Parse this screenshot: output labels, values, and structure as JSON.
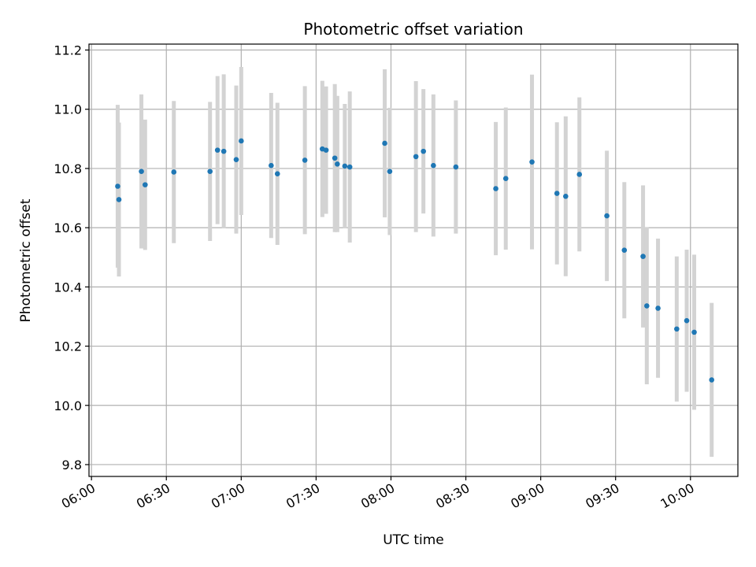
{
  "chart_data": {
    "type": "scatter",
    "title": "Photometric offset variation",
    "xlabel": "UTC time",
    "ylabel": "Photometric offset",
    "xlim": [
      "05:59",
      "10:19"
    ],
    "ylim": [
      9.76,
      11.22
    ],
    "x_ticks": [
      "06:00",
      "06:30",
      "07:00",
      "07:30",
      "08:00",
      "08:30",
      "09:00",
      "09:30",
      "10:00"
    ],
    "y_ticks": [
      "9.8",
      "10.0",
      "10.2",
      "10.4",
      "10.6",
      "10.8",
      "11.0",
      "11.2"
    ],
    "grid": true,
    "marker_color": "#1f77b4",
    "errorbar_color": "#d3d3d3",
    "points": [
      {
        "x": "06:10:30",
        "y": 10.74,
        "yerr": 0.275
      },
      {
        "x": "06:11:00",
        "y": 10.695,
        "yerr": 0.26
      },
      {
        "x": "06:20:00",
        "y": 10.79,
        "yerr": 0.26
      },
      {
        "x": "06:21:30",
        "y": 10.745,
        "yerr": 0.22
      },
      {
        "x": "06:33:00",
        "y": 10.788,
        "yerr": 0.24
      },
      {
        "x": "06:47:30",
        "y": 10.79,
        "yerr": 0.235
      },
      {
        "x": "06:50:30",
        "y": 10.862,
        "yerr": 0.25
      },
      {
        "x": "06:53:00",
        "y": 10.858,
        "yerr": 0.26
      },
      {
        "x": "06:58:00",
        "y": 10.83,
        "yerr": 0.25
      },
      {
        "x": "07:00:00",
        "y": 10.893,
        "yerr": 0.25
      },
      {
        "x": "07:12:00",
        "y": 10.81,
        "yerr": 0.245
      },
      {
        "x": "07:14:30",
        "y": 10.782,
        "yerr": 0.24
      },
      {
        "x": "07:25:30",
        "y": 10.828,
        "yerr": 0.25
      },
      {
        "x": "07:32:30",
        "y": 10.866,
        "yerr": 0.23
      },
      {
        "x": "07:34:00",
        "y": 10.862,
        "yerr": 0.215
      },
      {
        "x": "07:37:30",
        "y": 10.835,
        "yerr": 0.25
      },
      {
        "x": "07:38:30",
        "y": 10.815,
        "yerr": 0.23
      },
      {
        "x": "07:41:30",
        "y": 10.808,
        "yerr": 0.21
      },
      {
        "x": "07:43:30",
        "y": 10.805,
        "yerr": 0.255
      },
      {
        "x": "07:57:30",
        "y": 10.885,
        "yerr": 0.25
      },
      {
        "x": "07:59:30",
        "y": 10.79,
        "yerr": 0.215
      },
      {
        "x": "08:10:00",
        "y": 10.84,
        "yerr": 0.255
      },
      {
        "x": "08:13:00",
        "y": 10.858,
        "yerr": 0.21
      },
      {
        "x": "08:17:00",
        "y": 10.81,
        "yerr": 0.24
      },
      {
        "x": "08:26:00",
        "y": 10.805,
        "yerr": 0.225
      },
      {
        "x": "08:42:00",
        "y": 10.732,
        "yerr": 0.225
      },
      {
        "x": "08:46:00",
        "y": 10.766,
        "yerr": 0.24
      },
      {
        "x": "08:56:30",
        "y": 10.822,
        "yerr": 0.295
      },
      {
        "x": "09:06:30",
        "y": 10.716,
        "yerr": 0.24
      },
      {
        "x": "09:10:00",
        "y": 10.706,
        "yerr": 0.27
      },
      {
        "x": "09:15:30",
        "y": 10.78,
        "yerr": 0.26
      },
      {
        "x": "09:26:30",
        "y": 10.64,
        "yerr": 0.22
      },
      {
        "x": "09:33:30",
        "y": 10.524,
        "yerr": 0.23
      },
      {
        "x": "09:41:00",
        "y": 10.503,
        "yerr": 0.24
      },
      {
        "x": "09:42:30",
        "y": 10.336,
        "yerr": 0.265
      },
      {
        "x": "09:47:00",
        "y": 10.328,
        "yerr": 0.235
      },
      {
        "x": "09:54:30",
        "y": 10.258,
        "yerr": 0.245
      },
      {
        "x": "09:58:30",
        "y": 10.286,
        "yerr": 0.24
      },
      {
        "x": "10:01:30",
        "y": 10.247,
        "yerr": 0.262
      },
      {
        "x": "10:08:30",
        "y": 10.086,
        "yerr": 0.26
      }
    ]
  }
}
